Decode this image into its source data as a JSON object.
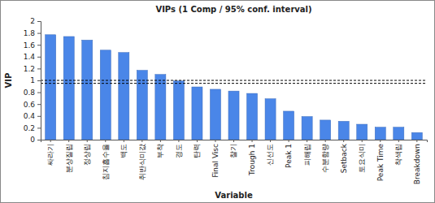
{
  "chart_data": {
    "type": "bar",
    "title": "VIPs (1 Comp / 95% conf. interval)",
    "x_label": "Variable",
    "y_label": "VIP",
    "categories": [
      "싸라기",
      "분상질립",
      "정상립",
      "침지흡수율",
      "백도",
      "취반식미값",
      "부착",
      "경도",
      "탄력",
      "Final Visc",
      "찰기",
      "Trough 1",
      "신선도",
      "Peak 1",
      "피해립",
      "수분함량",
      "Setback",
      "토요식미",
      "Peak Time",
      "착색립",
      "Breakdown"
    ],
    "values": [
      1.77,
      1.74,
      1.68,
      1.51,
      1.47,
      1.17,
      1.1,
      0.99,
      0.89,
      0.85,
      0.82,
      0.78,
      0.69,
      0.48,
      0.39,
      0.33,
      0.31,
      0.26,
      0.21,
      0.21,
      0.12
    ],
    "color": "#4a86e8",
    "reference_lines": [
      0.95,
      1
    ],
    "ylim": [
      0,
      2
    ],
    "yticks": [
      0,
      0.2,
      0.4,
      0.6,
      0.8,
      1,
      1.2,
      1.4,
      1.6,
      1.8,
      2
    ],
    "grid": false
  }
}
